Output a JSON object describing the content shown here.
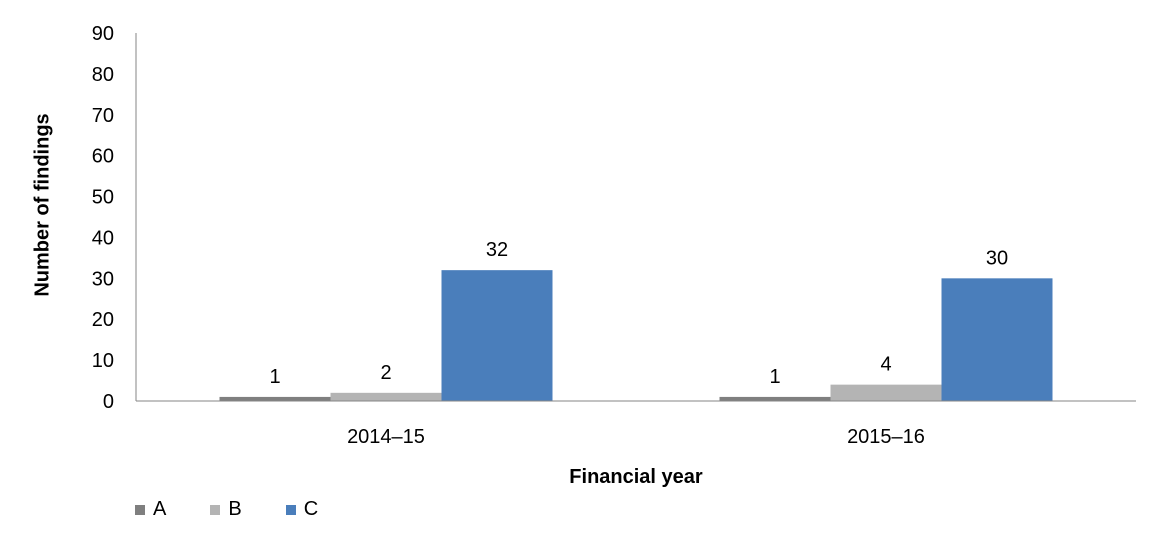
{
  "chart_data": {
    "type": "bar",
    "categories": [
      "2014–15",
      "2015–16"
    ],
    "series": [
      {
        "name": "A",
        "values": [
          1,
          1
        ],
        "color": "#7f7f7f"
      },
      {
        "name": "B",
        "values": [
          2,
          4
        ],
        "color": "#b4b4b4"
      },
      {
        "name": "C",
        "values": [
          32,
          30
        ],
        "color": "#4a7ebb"
      }
    ],
    "xlabel": "Financial year",
    "ylabel": "Number of findings",
    "ylim": [
      0,
      90
    ],
    "yticks": [
      "0",
      "10",
      "20",
      "30",
      "40",
      "50",
      "60",
      "70",
      "80",
      "90"
    ],
    "data_labels": true,
    "grid": false,
    "legend_position": "bottom-left"
  }
}
